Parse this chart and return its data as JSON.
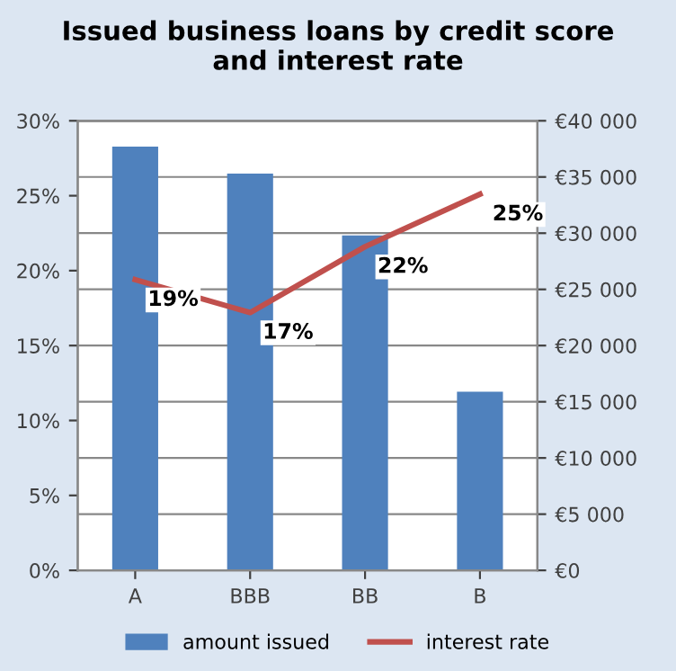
{
  "chart_data": {
    "type": "bar",
    "title": "Issued business loans by credit score\nand interest rate",
    "categories": [
      "A",
      "BBB",
      "BB",
      "B"
    ],
    "series": [
      {
        "name": "amount issued",
        "axis": "y2",
        "color": "#4f81bd",
        "values": [
          37700,
          35300,
          29800,
          15900
        ]
      },
      {
        "name": "interest rate",
        "type": "line",
        "axis": "y",
        "color": "#c0504d",
        "values": [
          19.4,
          17.2,
          21.6,
          25.1
        ],
        "value_labels": [
          "19%",
          "17%",
          "22%",
          "25%"
        ]
      }
    ],
    "ylim": [
      0,
      30
    ],
    "yticks": [
      {
        "value": 0,
        "label": "0%"
      },
      {
        "value": 5,
        "label": "5%"
      },
      {
        "value": 10,
        "label": "10%"
      },
      {
        "value": 15,
        "label": "15%"
      },
      {
        "value": 20,
        "label": "20%"
      },
      {
        "value": 25,
        "label": "25%"
      },
      {
        "value": 30,
        "label": "30%"
      }
    ],
    "y2lim": [
      0,
      40000
    ],
    "y2ticks": [
      {
        "value": 0,
        "label": "€0"
      },
      {
        "value": 5000,
        "label": "€5 000"
      },
      {
        "value": 10000,
        "label": "€10 000"
      },
      {
        "value": 15000,
        "label": "€15 000"
      },
      {
        "value": 20000,
        "label": "€20 000"
      },
      {
        "value": 25000,
        "label": "€25 000"
      },
      {
        "value": 30000,
        "label": "€30 000"
      },
      {
        "value": 35000,
        "label": "€35 000"
      },
      {
        "value": 40000,
        "label": "€40 000"
      }
    ],
    "grid": "y",
    "legend": "bottom",
    "marker": "none",
    "line_style": "solid"
  }
}
